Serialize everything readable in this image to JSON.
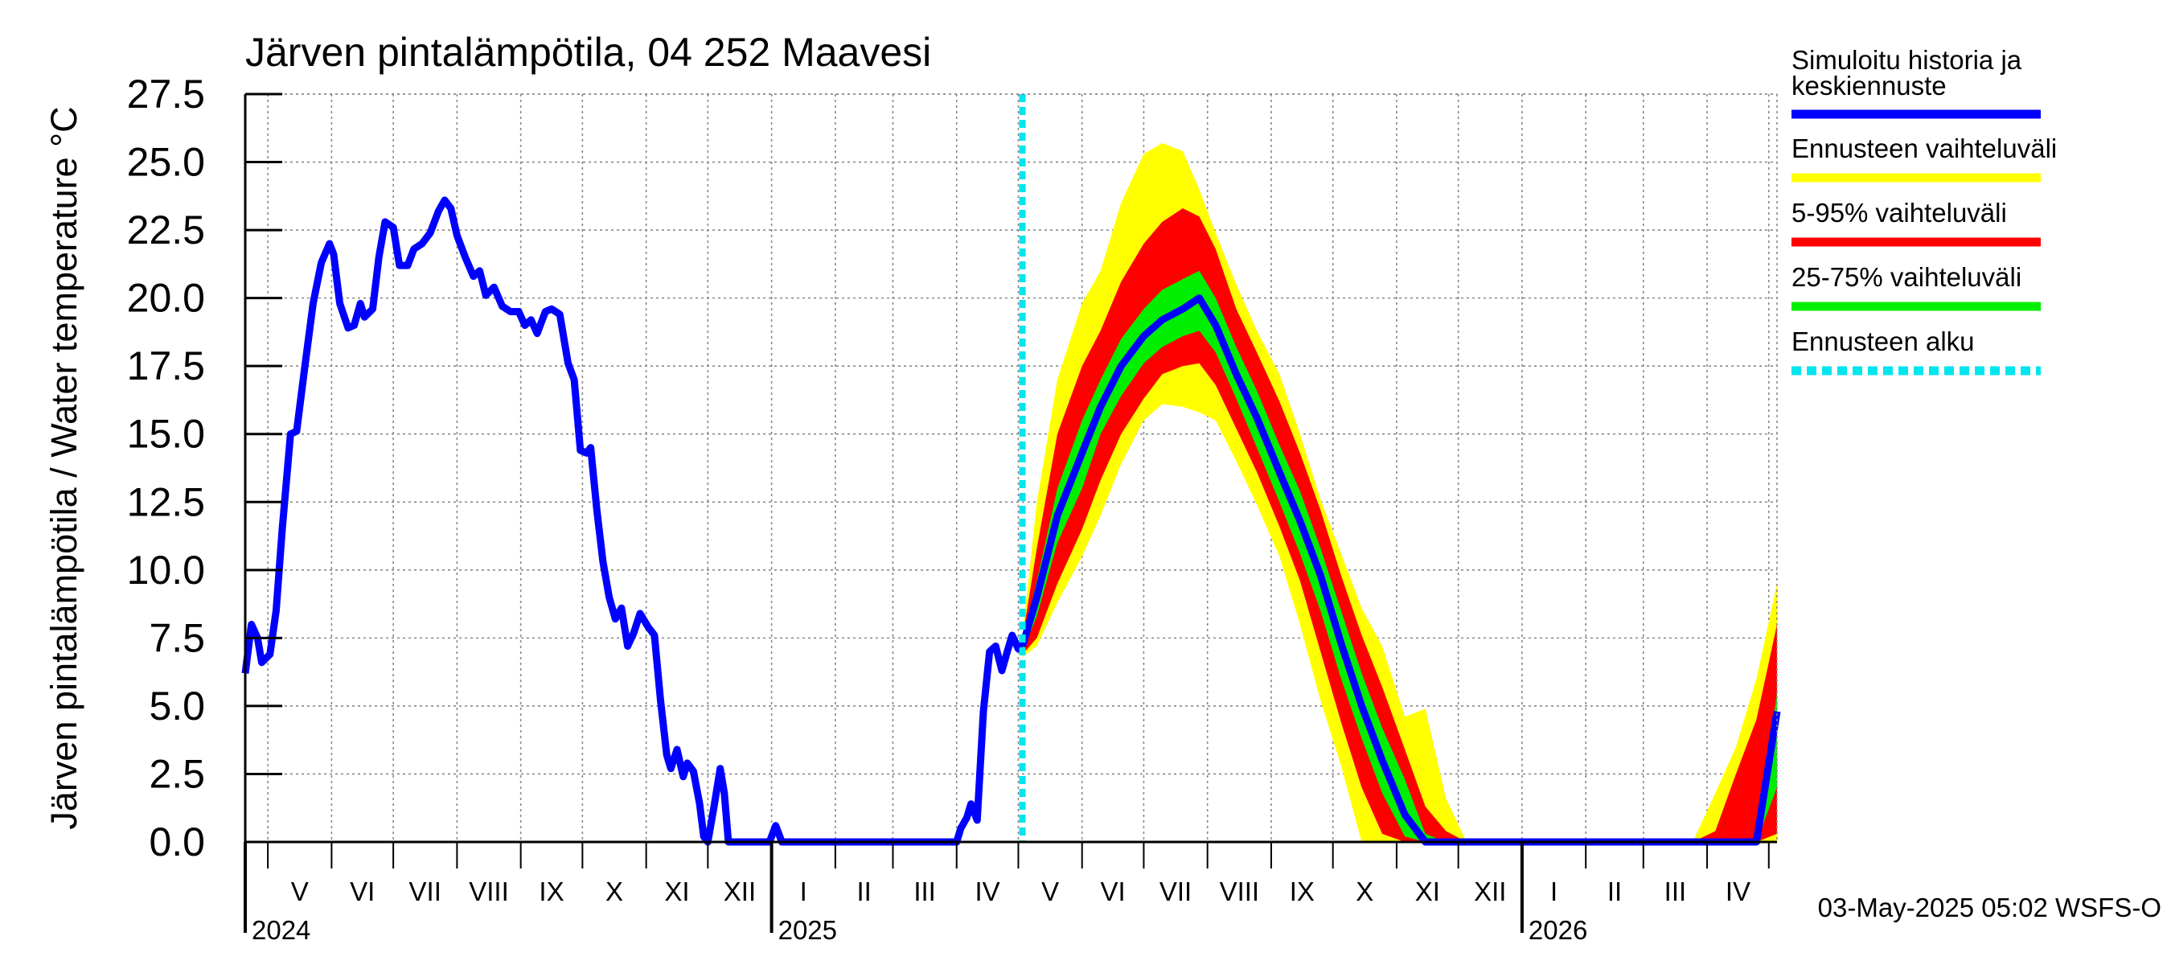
{
  "chart_data": {
    "type": "area",
    "title": "Järven pintalämpötila, 04 252 Maavesi",
    "ylabel": "Järven pintalämpötila / Water temperature °C",
    "ylim": [
      0,
      27.5
    ],
    "yticks": [
      "0.0",
      "2.5",
      "5.0",
      "7.5",
      "10.0",
      "12.5",
      "15.0",
      "17.5",
      "20.0",
      "22.5",
      "25.0",
      "27.5"
    ],
    "x_start": "2024-04-20",
    "x_end": "2026-05-05",
    "month_labels": [
      "V",
      "VI",
      "VII",
      "VIII",
      "IX",
      "X",
      "XI",
      "XII",
      "I",
      "II",
      "III",
      "IV",
      "V",
      "VI",
      "VII",
      "VIII",
      "IX",
      "X",
      "XI",
      "XII",
      "I",
      "II",
      "III",
      "IV"
    ],
    "year_labels": [
      "2024",
      "2025",
      "2026"
    ],
    "forecast_start": "2025-05-03",
    "footer": "03-May-2025 05:02 WSFS-O",
    "legend": [
      {
        "label": "Simuloitu historia ja keskiennuste",
        "color": "#0000ff",
        "style": "solid"
      },
      {
        "label": "Ennusteen vaihteluväli",
        "color": "#ffff00",
        "style": "solid"
      },
      {
        "label": "5-95% vaihteluväli",
        "color": "#ff0000",
        "style": "solid"
      },
      {
        "label": "25-75% vaihteluväli",
        "color": "#00ee00",
        "style": "solid"
      },
      {
        "label": "Ennusteen alku",
        "color": "#00e5ee",
        "style": "dashed"
      }
    ],
    "history": {
      "name": "Simuloitu historia ja keskiennuste",
      "points": [
        [
          "2024-04-20",
          6.2
        ],
        [
          "2024-04-23",
          8.0
        ],
        [
          "2024-04-26",
          7.5
        ],
        [
          "2024-04-28",
          6.6
        ],
        [
          "2024-05-02",
          6.9
        ],
        [
          "2024-05-05",
          8.5
        ],
        [
          "2024-05-08",
          11.5
        ],
        [
          "2024-05-12",
          15.0
        ],
        [
          "2024-05-15",
          15.1
        ],
        [
          "2024-05-19",
          17.5
        ],
        [
          "2024-05-23",
          19.8
        ],
        [
          "2024-05-27",
          21.3
        ],
        [
          "2024-05-31",
          22.0
        ],
        [
          "2024-06-02",
          21.6
        ],
        [
          "2024-06-05",
          19.8
        ],
        [
          "2024-06-09",
          18.9
        ],
        [
          "2024-06-12",
          19.0
        ],
        [
          "2024-06-15",
          19.8
        ],
        [
          "2024-06-17",
          19.3
        ],
        [
          "2024-06-21",
          19.6
        ],
        [
          "2024-06-24",
          21.5
        ],
        [
          "2024-06-27",
          22.8
        ],
        [
          "2024-07-01",
          22.6
        ],
        [
          "2024-07-04",
          21.2
        ],
        [
          "2024-07-08",
          21.2
        ],
        [
          "2024-07-11",
          21.8
        ],
        [
          "2024-07-15",
          22.0
        ],
        [
          "2024-07-19",
          22.4
        ],
        [
          "2024-07-23",
          23.2
        ],
        [
          "2024-07-26",
          23.6
        ],
        [
          "2024-07-29",
          23.3
        ],
        [
          "2024-08-01",
          22.3
        ],
        [
          "2024-08-05",
          21.5
        ],
        [
          "2024-08-09",
          20.8
        ],
        [
          "2024-08-12",
          21.0
        ],
        [
          "2024-08-15",
          20.1
        ],
        [
          "2024-08-19",
          20.4
        ],
        [
          "2024-08-23",
          19.7
        ],
        [
          "2024-08-27",
          19.5
        ],
        [
          "2024-08-31",
          19.5
        ],
        [
          "2024-09-03",
          19.0
        ],
        [
          "2024-09-06",
          19.2
        ],
        [
          "2024-09-09",
          18.7
        ],
        [
          "2024-09-13",
          19.5
        ],
        [
          "2024-09-16",
          19.6
        ],
        [
          "2024-09-20",
          19.4
        ],
        [
          "2024-09-24",
          17.6
        ],
        [
          "2024-09-27",
          17.0
        ],
        [
          "2024-09-30",
          14.4
        ],
        [
          "2024-10-03",
          14.3
        ],
        [
          "2024-10-05",
          14.5
        ],
        [
          "2024-10-08",
          12.2
        ],
        [
          "2024-10-11",
          10.3
        ],
        [
          "2024-10-14",
          9.0
        ],
        [
          "2024-10-17",
          8.2
        ],
        [
          "2024-10-20",
          8.6
        ],
        [
          "2024-10-23",
          7.2
        ],
        [
          "2024-10-26",
          7.7
        ],
        [
          "2024-10-29",
          8.4
        ],
        [
          "2024-11-02",
          7.9
        ],
        [
          "2024-11-05",
          7.6
        ],
        [
          "2024-11-08",
          5.2
        ],
        [
          "2024-11-11",
          3.2
        ],
        [
          "2024-11-13",
          2.7
        ],
        [
          "2024-11-16",
          3.4
        ],
        [
          "2024-11-19",
          2.4
        ],
        [
          "2024-11-21",
          2.9
        ],
        [
          "2024-11-24",
          2.6
        ],
        [
          "2024-11-27",
          1.4
        ],
        [
          "2024-11-29",
          0.2
        ],
        [
          "2024-12-01",
          0.0
        ],
        [
          "2024-12-04",
          1.3
        ],
        [
          "2024-12-07",
          2.7
        ],
        [
          "2024-12-09",
          1.8
        ],
        [
          "2024-12-11",
          0.0
        ],
        [
          "2024-12-31",
          0.0
        ],
        [
          "2025-01-03",
          0.6
        ],
        [
          "2025-01-06",
          0.0
        ],
        [
          "2025-04-01",
          0.0
        ],
        [
          "2025-04-03",
          0.5
        ],
        [
          "2025-04-06",
          0.9
        ],
        [
          "2025-04-08",
          1.4
        ],
        [
          "2025-04-11",
          0.8
        ],
        [
          "2025-04-14",
          4.8
        ],
        [
          "2025-04-17",
          7.0
        ],
        [
          "2025-04-20",
          7.2
        ],
        [
          "2025-04-23",
          6.3
        ],
        [
          "2025-04-26",
          7.1
        ],
        [
          "2025-04-28",
          7.6
        ],
        [
          "2025-05-01",
          7.1
        ],
        [
          "2025-05-03",
          7.2
        ]
      ]
    },
    "forecast": {
      "dates": [
        "2025-05-03",
        "2025-05-10",
        "2025-05-20",
        "2025-06-01",
        "2025-06-10",
        "2025-06-20",
        "2025-07-01",
        "2025-07-10",
        "2025-07-20",
        "2025-07-28",
        "2025-08-05",
        "2025-08-15",
        "2025-08-25",
        "2025-09-05",
        "2025-09-15",
        "2025-09-25",
        "2025-10-05",
        "2025-10-15",
        "2025-10-25",
        "2025-11-05",
        "2025-11-15",
        "2025-11-25",
        "2025-12-05",
        "2025-12-15",
        "2025-12-25",
        "2026-01-05",
        "2026-03-15",
        "2026-03-25",
        "2026-04-05",
        "2026-04-15",
        "2026-04-25",
        "2026-05-05"
      ],
      "mean": [
        7.2,
        9.0,
        12.0,
        14.3,
        16.0,
        17.5,
        18.6,
        19.2,
        19.6,
        20.0,
        19.0,
        17.2,
        15.6,
        13.6,
        11.8,
        9.8,
        7.3,
        5.0,
        3.0,
        1.0,
        0.0,
        0.0,
        0.0,
        0.0,
        0.0,
        0.0,
        0.0,
        0.0,
        0.0,
        0.0,
        0.0,
        4.8
      ],
      "p25": [
        7.0,
        8.3,
        11.0,
        13.0,
        15.0,
        16.4,
        17.6,
        18.2,
        18.6,
        18.8,
        18.0,
        16.3,
        14.5,
        12.5,
        10.6,
        8.5,
        6.0,
        3.8,
        1.8,
        0.2,
        0.0,
        0.0,
        0.0,
        0.0,
        0.0,
        0.0,
        0.0,
        0.0,
        0.0,
        0.0,
        0.0,
        2.0
      ],
      "p75": [
        7.4,
        9.6,
        13.0,
        15.5,
        17.0,
        18.5,
        19.6,
        20.3,
        20.7,
        21.0,
        20.0,
        18.2,
        16.6,
        14.6,
        12.9,
        10.8,
        8.5,
        6.2,
        4.2,
        2.3,
        0.3,
        0.0,
        0.0,
        0.0,
        0.0,
        0.0,
        0.0,
        0.0,
        0.0,
        0.0,
        0.0,
        5.5
      ],
      "p5": [
        6.9,
        7.5,
        9.5,
        11.5,
        13.3,
        15.0,
        16.3,
        17.2,
        17.5,
        17.6,
        16.8,
        15.2,
        13.6,
        11.6,
        9.6,
        7.0,
        4.4,
        2.0,
        0.3,
        0.0,
        0.0,
        0.0,
        0.0,
        0.0,
        0.0,
        0.0,
        0.0,
        0.0,
        0.0,
        0.0,
        0.0,
        0.3
      ],
      "p95": [
        7.5,
        10.8,
        15.0,
        17.5,
        18.8,
        20.6,
        22.0,
        22.8,
        23.3,
        23.0,
        21.8,
        19.6,
        18.0,
        16.2,
        14.3,
        12.2,
        9.8,
        7.6,
        5.7,
        3.4,
        1.3,
        0.4,
        0.0,
        0.0,
        0.0,
        0.0,
        0.0,
        0.0,
        0.4,
        2.5,
        4.5,
        8.0
      ],
      "min": [
        6.8,
        7.2,
        8.8,
        10.5,
        12.0,
        13.9,
        15.5,
        16.1,
        16.0,
        15.8,
        15.5,
        14.0,
        12.4,
        10.5,
        8.0,
        5.2,
        2.8,
        0.0,
        0.0,
        0.0,
        0.0,
        0.0,
        0.0,
        0.0,
        0.0,
        0.0,
        0.0,
        0.0,
        0.0,
        0.0,
        0.0,
        0.0
      ],
      "max": [
        7.6,
        12.5,
        17.0,
        19.8,
        21.0,
        23.5,
        25.3,
        25.7,
        25.4,
        24.0,
        22.4,
        20.5,
        18.8,
        17.2,
        15.0,
        12.6,
        10.6,
        8.6,
        7.2,
        4.6,
        4.9,
        1.6,
        0.0,
        0.0,
        0.0,
        0.0,
        0.0,
        0.0,
        1.8,
        3.5,
        6.0,
        9.5
      ]
    }
  }
}
